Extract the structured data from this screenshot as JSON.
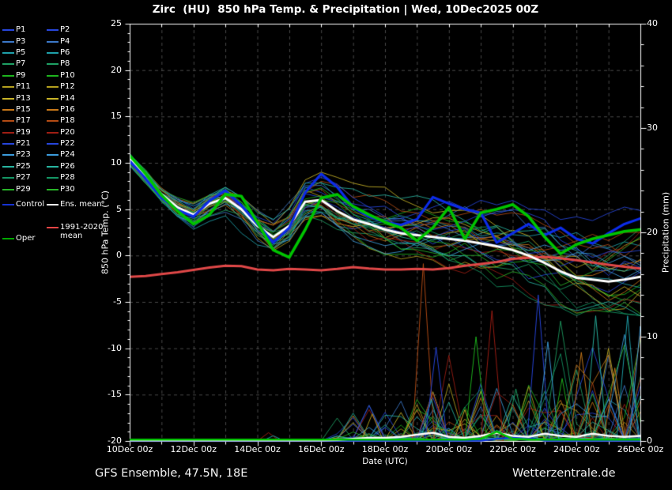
{
  "title": "Zirc  (HU)  850 hPa Temp. & Precipitation | Wed, 10Dec2025 00Z",
  "footer": {
    "left": "GFS Ensemble, 47.5N, 18E",
    "right": "Wetterzentrale.de"
  },
  "style": {
    "background": "#000000",
    "grid_color": "#5a5a5a",
    "frame_color": "#ffffff",
    "text_color": "#ffffff"
  },
  "legend": {
    "members": [
      {
        "label": "P1",
        "color": "#2746dc"
      },
      {
        "label": "P2",
        "color": "#2746dc"
      },
      {
        "label": "P3",
        "color": "#3c78c8"
      },
      {
        "label": "P4",
        "color": "#3c78c8"
      },
      {
        "label": "P5",
        "color": "#1ea0aa"
      },
      {
        "label": "P6",
        "color": "#1ea0aa"
      },
      {
        "label": "P7",
        "color": "#1ea064"
      },
      {
        "label": "P8",
        "color": "#1ea064"
      },
      {
        "label": "P9",
        "color": "#1eb41e"
      },
      {
        "label": "P10",
        "color": "#1eb41e"
      },
      {
        "label": "P11",
        "color": "#b4a01e"
      },
      {
        "label": "P12",
        "color": "#b4a01e"
      },
      {
        "label": "P13",
        "color": "#c8b428"
      },
      {
        "label": "P14",
        "color": "#c8b428"
      },
      {
        "label": "P15",
        "color": "#c87819"
      },
      {
        "label": "P16",
        "color": "#c87819"
      },
      {
        "label": "P17",
        "color": "#b44b14"
      },
      {
        "label": "P18",
        "color": "#b44b14"
      },
      {
        "label": "P19",
        "color": "#a01e14"
      },
      {
        "label": "P20",
        "color": "#a01e14"
      },
      {
        "label": "P21",
        "color": "#2746dc"
      },
      {
        "label": "P22",
        "color": "#2746dc"
      },
      {
        "label": "P23",
        "color": "#3c9cdc"
      },
      {
        "label": "P24",
        "color": "#3c9cdc"
      },
      {
        "label": "P25",
        "color": "#28b4a0"
      },
      {
        "label": "P26",
        "color": "#28b4a0"
      },
      {
        "label": "P27",
        "color": "#149664"
      },
      {
        "label": "P28",
        "color": "#149664"
      },
      {
        "label": "P29",
        "color": "#28b428"
      },
      {
        "label": "P30",
        "color": "#28b428"
      }
    ],
    "control": {
      "label": "Control",
      "color": "#1632d2"
    },
    "ens_mean": {
      "label": "Ens. mean",
      "color": "#ffffff"
    },
    "clim_mean": {
      "label": "1991-2020 mean",
      "color": "#e64545"
    },
    "oper": {
      "label": "Oper",
      "color": "#00a800"
    }
  },
  "axes": {
    "left": {
      "label": "850 hPa Temp. (°C)",
      "range": [
        -20,
        25
      ],
      "ticks": [
        {
          "value": 25,
          "label": "25"
        },
        {
          "value": 20,
          "label": "20"
        },
        {
          "value": 15,
          "label": "15"
        },
        {
          "value": 10,
          "label": "10"
        },
        {
          "value": 5,
          "label": "5"
        },
        {
          "value": 0,
          "label": "0"
        },
        {
          "value": -5,
          "label": "-5"
        },
        {
          "value": -10,
          "label": "-10"
        },
        {
          "value": -15,
          "label": "-15"
        },
        {
          "value": -20,
          "label": "-20"
        }
      ]
    },
    "right": {
      "label": "Precipitation (mm)",
      "range": [
        0,
        40
      ],
      "ticks": [
        {
          "value": 40,
          "label": "40"
        },
        {
          "value": 30,
          "label": "30"
        },
        {
          "value": 20,
          "label": "20"
        },
        {
          "value": 10,
          "label": "10"
        },
        {
          "value": 0,
          "label": "0"
        }
      ]
    },
    "x": {
      "label": "Date (UTC)",
      "range_days": [
        0,
        16
      ],
      "ticks": [
        {
          "day": 0,
          "label": "10Dec 00z"
        },
        {
          "day": 2,
          "label": "12Dec 00z"
        },
        {
          "day": 4,
          "label": "14Dec 00z"
        },
        {
          "day": 6,
          "label": "16Dec 00z"
        },
        {
          "day": 8,
          "label": "18Dec 00z"
        },
        {
          "day": 10,
          "label": "20Dec 00z"
        },
        {
          "day": 12,
          "label": "22Dec 00z"
        },
        {
          "day": 14,
          "label": "24Dec 00z"
        },
        {
          "day": 16,
          "label": "26Dec 00z"
        }
      ]
    }
  },
  "chart_data": {
    "type": "line",
    "title": "Zirc (HU) 850 hPa Temp. & Precipitation | Wed, 10Dec2025 00Z",
    "xlabel": "Date (UTC)",
    "ylabel_left": "850 hPa Temp. (°C)",
    "ylabel_right": "Precipitation (mm)",
    "ylim_temp": [
      -20,
      25
    ],
    "ylim_precip": [
      0,
      40
    ],
    "grid": true,
    "x_days": [
      0,
      0.5,
      1,
      1.5,
      2,
      2.5,
      3,
      3.5,
      4,
      4.5,
      5,
      5.5,
      6,
      6.5,
      7,
      7.5,
      8,
      8.5,
      9,
      9.5,
      10,
      10.5,
      11,
      11.5,
      12,
      12.5,
      13,
      13.5,
      14,
      14.5,
      15,
      15.5,
      16
    ],
    "series": [
      {
        "name": "Ens. mean",
        "axis": "temp",
        "color": "#ffffff",
        "width": 3,
        "values": [
          10.4,
          8.6,
          6.6,
          5.2,
          4.4,
          5.6,
          6.2,
          5.0,
          3.2,
          2.0,
          3.2,
          5.8,
          6.0,
          4.8,
          3.9,
          3.4,
          2.8,
          2.4,
          2.2,
          2.0,
          1.8,
          1.6,
          1.3,
          1.0,
          0.6,
          0.0,
          -0.8,
          -1.7,
          -2.4,
          -2.6,
          -2.8,
          -2.6,
          -2.3
        ]
      },
      {
        "name": "Control",
        "axis": "temp",
        "color": "#0c2ce8",
        "width": 3.2,
        "values": [
          10.2,
          8.3,
          6.2,
          4.9,
          4.2,
          5.9,
          7.0,
          5.4,
          3.4,
          1.4,
          3.0,
          6.8,
          8.8,
          7.4,
          5.2,
          4.2,
          3.6,
          3.3,
          3.9,
          6.3,
          5.6,
          5.0,
          4.6,
          1.4,
          2.4,
          3.4,
          2.2,
          3.0,
          1.8,
          1.3,
          2.4,
          3.4,
          4.0
        ]
      },
      {
        "name": "Oper",
        "axis": "temp",
        "color": "#00c400",
        "width": 3.6,
        "values": [
          10.8,
          8.8,
          6.5,
          4.8,
          3.4,
          4.4,
          6.6,
          6.4,
          3.6,
          0.6,
          -0.2,
          2.8,
          6.2,
          6.6,
          5.3,
          4.4,
          3.6,
          3.0,
          1.6,
          3.0,
          5.2,
          1.8,
          4.6,
          5.0,
          5.5,
          4.2,
          2.0,
          0.2,
          1.2,
          1.8,
          2.2,
          2.6,
          2.8
        ]
      },
      {
        "name": "1991-2020 mean",
        "axis": "temp",
        "color": "#e04848",
        "width": 3,
        "values": [
          -2.3,
          -2.2,
          -2.0,
          -1.8,
          -1.55,
          -1.3,
          -1.1,
          -1.15,
          -1.5,
          -1.6,
          -1.45,
          -1.5,
          -1.6,
          -1.45,
          -1.25,
          -1.4,
          -1.5,
          -1.5,
          -1.45,
          -1.5,
          -1.35,
          -1.1,
          -0.9,
          -0.7,
          -0.35,
          -0.25,
          -0.15,
          -0.3,
          -0.5,
          -0.75,
          -1.0,
          -1.2,
          -1.4
        ]
      },
      {
        "name": "Ens. mean precip",
        "axis": "precip",
        "color": "#ffffff",
        "width": 2.5,
        "values": [
          0,
          0,
          0,
          0,
          0,
          0,
          0,
          0,
          0,
          0,
          0,
          0,
          0,
          0.1,
          0.2,
          0.3,
          0.3,
          0.4,
          0.6,
          0.8,
          0.4,
          0.3,
          0.5,
          0.8,
          0.5,
          0.4,
          0.7,
          0.5,
          0.4,
          0.7,
          0.5,
          0.4,
          0.5
        ]
      },
      {
        "name": "Control precip",
        "axis": "precip",
        "color": "#0c2ce8",
        "width": 2,
        "values": [
          0,
          0,
          0,
          0,
          0,
          0,
          0,
          0,
          0,
          0,
          0,
          0,
          0,
          0,
          0,
          0,
          0,
          0,
          0,
          0,
          0,
          0,
          0,
          0.2,
          0.35,
          0.35,
          0,
          0,
          0,
          0,
          0,
          0,
          0
        ]
      },
      {
        "name": "Oper precip",
        "axis": "precip",
        "color": "#00c400",
        "width": 2.5,
        "values": [
          0,
          0,
          0,
          0,
          0,
          0,
          0,
          0,
          0,
          0,
          0,
          0,
          0,
          0,
          0,
          0,
          0,
          0,
          0,
          0,
          0,
          0,
          0.2,
          0.9,
          0.2,
          0,
          0,
          0,
          0,
          0,
          0,
          0,
          0
        ]
      }
    ],
    "ensemble": {
      "count": 30,
      "colors": [
        "#2746dc",
        "#2746dc",
        "#3c78c8",
        "#3c78c8",
        "#1ea0aa",
        "#1ea0aa",
        "#1ea064",
        "#1ea064",
        "#1eb41e",
        "#1eb41e",
        "#b4a01e",
        "#b4a01e",
        "#c8b428",
        "#c8b428",
        "#c87819",
        "#c87819",
        "#b44b14",
        "#b44b14",
        "#a01e14",
        "#a01e14",
        "#2746dc",
        "#2746dc",
        "#3c9cdc",
        "#3c9cdc",
        "#28b4a0",
        "#28b4a0",
        "#149664",
        "#149664",
        "#28b428",
        "#28b428"
      ],
      "temp_envelope": {
        "days": [
          0,
          1,
          2,
          3,
          4,
          5,
          6,
          7,
          8,
          9,
          10,
          11,
          12,
          13,
          14,
          15,
          16
        ],
        "min": [
          9.6,
          5.8,
          2.6,
          2.5,
          0.8,
          0.0,
          2.5,
          1.5,
          0.0,
          -1.2,
          -2.2,
          -3.2,
          -4.6,
          -5.6,
          -6.5,
          -6.2,
          -6.5
        ],
        "max": [
          11.0,
          7.6,
          5.8,
          7.4,
          6.6,
          7.5,
          9.0,
          8.0,
          7.5,
          7.0,
          7.0,
          7.0,
          6.0,
          6.0,
          5.0,
          5.0,
          5.5
        ]
      },
      "precip_spikes": [
        {
          "day": 4.35,
          "mm": 0.8,
          "color": "#a01e14"
        },
        {
          "day": 4.5,
          "mm": 0.5,
          "color": "#1ea0aa"
        },
        {
          "day": 7.6,
          "mm": 2.6,
          "color": "#b4a01e"
        },
        {
          "day": 9.2,
          "mm": 17,
          "color": "#b44b14"
        },
        {
          "day": 9.45,
          "mm": 4,
          "color": "#28b4a0"
        },
        {
          "day": 9.6,
          "mm": 9,
          "color": "#2746dc"
        },
        {
          "day": 10.5,
          "mm": 3,
          "color": "#c8b428"
        },
        {
          "day": 10.85,
          "mm": 10,
          "color": "#1eb41e"
        },
        {
          "day": 11.35,
          "mm": 12.5,
          "color": "#a01e14"
        },
        {
          "day": 12.1,
          "mm": 5,
          "color": "#1ea064"
        },
        {
          "day": 12.8,
          "mm": 14,
          "color": "#2746dc"
        },
        {
          "day": 13.1,
          "mm": 9.5,
          "color": "#3c9cdc"
        },
        {
          "day": 13.55,
          "mm": 6,
          "color": "#1eb41e"
        },
        {
          "day": 14.15,
          "mm": 8.5,
          "color": "#c87819"
        },
        {
          "day": 14.6,
          "mm": 12,
          "color": "#28b4a0"
        },
        {
          "day": 15.2,
          "mm": 7,
          "color": "#c87819"
        },
        {
          "day": 15.6,
          "mm": 12,
          "color": "#1ea0aa"
        },
        {
          "day": 16,
          "mm": 11,
          "color": "#3c9cdc"
        }
      ]
    }
  }
}
